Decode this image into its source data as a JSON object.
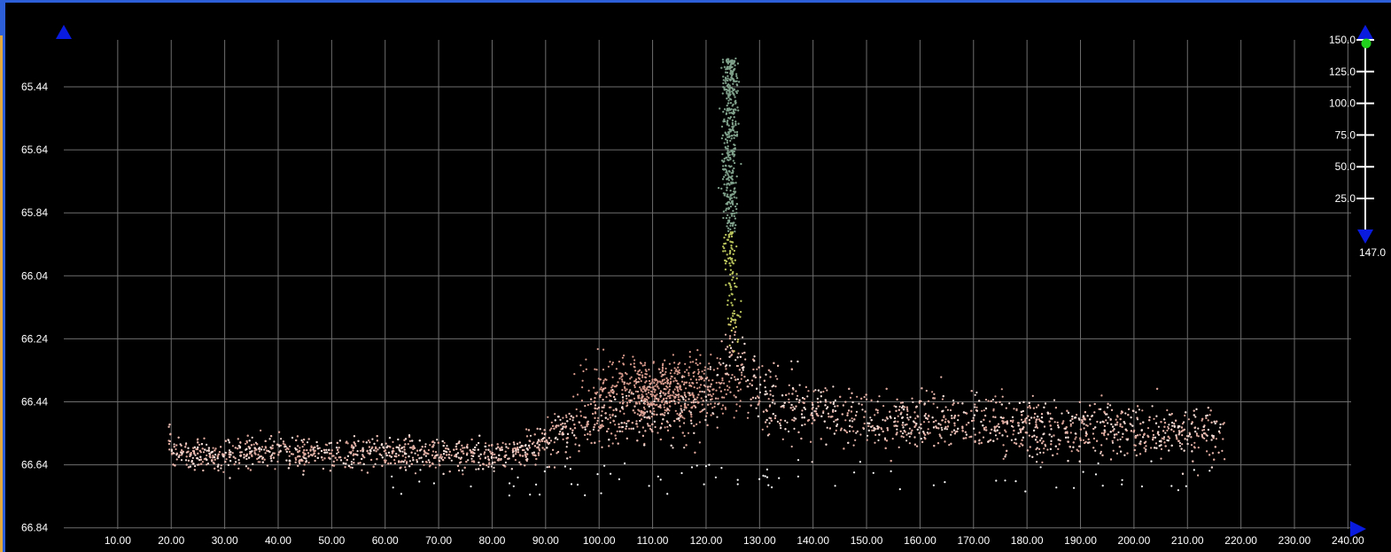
{
  "chart_data": {
    "type": "scatter",
    "title": "",
    "xlabel": "",
    "ylabel": "",
    "x_ticks": [
      "10.00",
      "20.00",
      "30.00",
      "40.00",
      "50.00",
      "60.00",
      "70.00",
      "80.00",
      "90.00",
      "100.00",
      "110.00",
      "120.00",
      "130.00",
      "140.00",
      "150.00",
      "160.00",
      "170.00",
      "180.00",
      "190.00",
      "200.00",
      "210.00",
      "220.00",
      "230.00",
      "240.00"
    ],
    "y_ticks": [
      "65.44",
      "65.64",
      "65.84",
      "66.04",
      "66.24",
      "66.44",
      "66.64",
      "66.84"
    ],
    "xlim": [
      0,
      240
    ],
    "ylim": [
      65.29,
      66.84
    ],
    "y_inverted": true,
    "grid": true,
    "series": [
      {
        "points_description_note": "",
        "baseline_profile": [
          [
            20,
            66.61
          ],
          [
            30,
            66.61
          ],
          [
            40,
            66.6
          ],
          [
            50,
            66.61
          ],
          [
            60,
            66.6
          ],
          [
            70,
            66.61
          ],
          [
            80,
            66.61
          ],
          [
            90,
            66.57
          ],
          [
            100,
            66.48
          ],
          [
            110,
            66.47
          ],
          [
            120,
            66.44
          ],
          [
            125,
            66.3
          ],
          [
            130,
            66.43
          ],
          [
            140,
            66.47
          ],
          [
            150,
            66.5
          ],
          [
            160,
            66.5
          ],
          [
            170,
            66.51
          ],
          [
            180,
            66.52
          ],
          [
            190,
            66.53
          ],
          [
            200,
            66.53
          ],
          [
            210,
            66.54
          ],
          [
            217,
            66.55
          ]
        ],
        "spike": {
          "x": 124.5,
          "y_top": 65.35,
          "y_bottom": 66.3
        }
      }
    ],
    "color_scale": {
      "ticks": [
        "150.0",
        "125.0",
        "100.0",
        "75.0",
        "50.0",
        "25.0"
      ],
      "min_label": "147.0",
      "range": [
        0,
        150
      ]
    },
    "colors": {
      "background": "#000000",
      "grid": "#6e6e6e",
      "point_base": "#e9b8ae",
      "point_mid": "#d8d06a",
      "point_high": "#7fa08a",
      "marker": "#0a1be0",
      "slider_knob": "#21d01c"
    }
  }
}
